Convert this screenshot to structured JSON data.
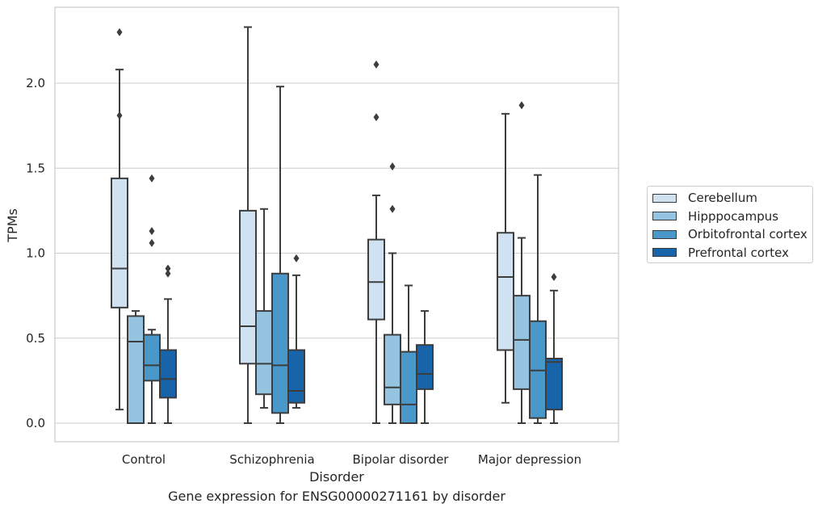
{
  "caption": "Gene expression for ENSG00000271161 by disorder",
  "chart_data": {
    "type": "box",
    "xlabel": "Disorder",
    "ylabel": "TPMs",
    "ylim": [
      -0.11,
      2.45
    ],
    "yticks": [
      "0.0",
      "0.5",
      "1.0",
      "1.5",
      "2.0"
    ],
    "ytick_values": [
      0,
      0.5,
      1.0,
      1.5,
      2.0
    ],
    "grid": "horizontal",
    "legend_position": "right",
    "categories": [
      "Control",
      "Schizophrenia",
      "Bipolar disorder",
      "Major depression"
    ],
    "series": [
      {
        "name": "Cerebellum",
        "color": "#d0e1f2",
        "boxes": [
          {
            "whislo": 0.08,
            "q1": 0.68,
            "med": 0.91,
            "q3": 1.44,
            "whishi": 2.08,
            "fliers": [
              2.3,
              1.81
            ]
          },
          {
            "whislo": 0.0,
            "q1": 0.35,
            "med": 0.57,
            "q3": 1.25,
            "whishi": 2.33,
            "fliers": []
          },
          {
            "whislo": 0.0,
            "q1": 0.61,
            "med": 0.83,
            "q3": 1.08,
            "whishi": 1.34,
            "fliers": [
              2.11,
              1.8
            ]
          },
          {
            "whislo": 0.12,
            "q1": 0.43,
            "med": 0.86,
            "q3": 1.12,
            "whishi": 1.82,
            "fliers": []
          }
        ]
      },
      {
        "name": "Hipppocampus",
        "color": "#94c4df",
        "boxes": [
          {
            "whislo": 0.0,
            "q1": 0.0,
            "med": 0.48,
            "q3": 0.63,
            "whishi": 0.66,
            "fliers": []
          },
          {
            "whislo": 0.09,
            "q1": 0.17,
            "med": 0.35,
            "q3": 0.66,
            "whishi": 1.26,
            "fliers": []
          },
          {
            "whislo": 0.0,
            "q1": 0.11,
            "med": 0.21,
            "q3": 0.52,
            "whishi": 1.0,
            "fliers": [
              1.51,
              1.26
            ]
          },
          {
            "whislo": 0.0,
            "q1": 0.2,
            "med": 0.49,
            "q3": 0.75,
            "whishi": 1.09,
            "fliers": [
              1.87
            ]
          }
        ]
      },
      {
        "name": "Orbitofrontal cortex",
        "color": "#4a98c9",
        "boxes": [
          {
            "whislo": 0.0,
            "q1": 0.25,
            "med": 0.34,
            "q3": 0.52,
            "whishi": 0.55,
            "fliers": [
              1.44,
              1.13,
              1.06
            ]
          },
          {
            "whislo": 0.0,
            "q1": 0.06,
            "med": 0.34,
            "q3": 0.88,
            "whishi": 1.98,
            "fliers": []
          },
          {
            "whislo": 0.0,
            "q1": 0.0,
            "med": 0.11,
            "q3": 0.42,
            "whishi": 0.81,
            "fliers": []
          },
          {
            "whislo": 0.0,
            "q1": 0.03,
            "med": 0.31,
            "q3": 0.6,
            "whishi": 1.46,
            "fliers": []
          }
        ]
      },
      {
        "name": "Prefrontal cortex",
        "color": "#1764ab",
        "boxes": [
          {
            "whislo": 0.0,
            "q1": 0.15,
            "med": 0.26,
            "q3": 0.43,
            "whishi": 0.73,
            "fliers": [
              0.91,
              0.88
            ]
          },
          {
            "whislo": 0.09,
            "q1": 0.12,
            "med": 0.19,
            "q3": 0.43,
            "whishi": 0.87,
            "fliers": [
              0.97
            ]
          },
          {
            "whislo": 0.0,
            "q1": 0.2,
            "med": 0.29,
            "q3": 0.46,
            "whishi": 0.66,
            "fliers": []
          },
          {
            "whislo": 0.0,
            "q1": 0.08,
            "med": 0.36,
            "q3": 0.38,
            "whishi": 0.78,
            "fliers": [
              0.86
            ]
          }
        ]
      }
    ]
  }
}
